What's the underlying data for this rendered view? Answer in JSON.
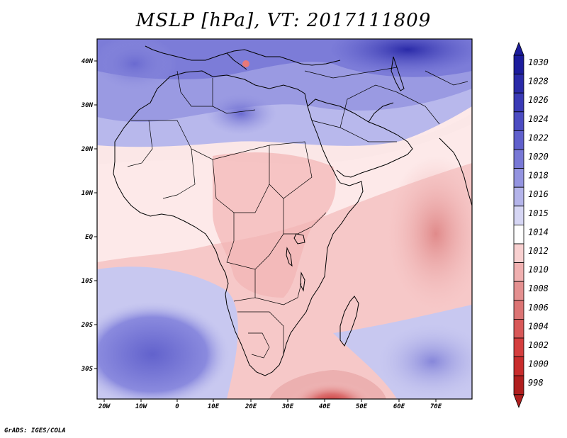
{
  "title": "MSLP [hPa], VT: 2017111809",
  "footer": "GrADS: IGES/COLA",
  "map": {
    "lon_range": [
      -22,
      80
    ],
    "lat_range": [
      -37,
      45
    ],
    "lon_ticks": [
      "20W",
      "10W",
      "0",
      "10E",
      "20E",
      "30E",
      "40E",
      "50E",
      "60E",
      "70E"
    ],
    "lat_ticks": [
      "40N",
      "30N",
      "20N",
      "10N",
      "EQ",
      "10S",
      "20S",
      "30S"
    ],
    "field": "Mean sea level pressure"
  },
  "colorbar": {
    "labels": [
      "1030",
      "1028",
      "1026",
      "1024",
      "1022",
      "1020",
      "1018",
      "1016",
      "1015",
      "1014",
      "1012",
      "1010",
      "1008",
      "1006",
      "1004",
      "1002",
      "1000",
      "998"
    ],
    "colors": [
      "#1c1c9c",
      "#2a2aa8",
      "#3a3ab6",
      "#4c4cc2",
      "#6060cc",
      "#7878d6",
      "#9494e0",
      "#b4b4ea",
      "#d6d6f4",
      "#ffffff",
      "#f8d0d0",
      "#f0b0b0",
      "#e49090",
      "#dc7474",
      "#d85858",
      "#d43e3e",
      "#c82c2c",
      "#b01e1e"
    ]
  }
}
